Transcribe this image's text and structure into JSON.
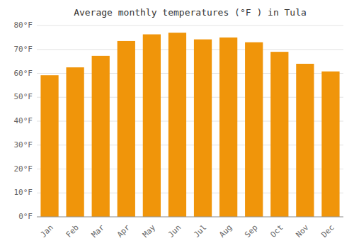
{
  "chart_data": {
    "type": "bar",
    "title": "Average monthly temperatures (°F ) in Tula",
    "categories": [
      "Jan",
      "Feb",
      "Mar",
      "Apr",
      "May",
      "Jun",
      "Jul",
      "Aug",
      "Sep",
      "Oct",
      "Nov",
      "Dec"
    ],
    "values": [
      59.2,
      62.5,
      67.3,
      73.5,
      76.3,
      77.0,
      74.2,
      75.0,
      73.0,
      69.0,
      64.0,
      60.8
    ],
    "color": "#F0950A",
    "ylim": [
      0,
      80
    ],
    "yticks": [
      {
        "value": 0,
        "label": "0°F"
      },
      {
        "value": 10,
        "label": "10°F"
      },
      {
        "value": 20,
        "label": "20°F"
      },
      {
        "value": 30,
        "label": "30°F"
      },
      {
        "value": 40,
        "label": "40°F"
      },
      {
        "value": 50,
        "label": "50°F"
      },
      {
        "value": 60,
        "label": "60°F"
      },
      {
        "value": 70,
        "label": "70°F"
      },
      {
        "value": 80,
        "label": "80°F"
      }
    ],
    "grid": true
  }
}
